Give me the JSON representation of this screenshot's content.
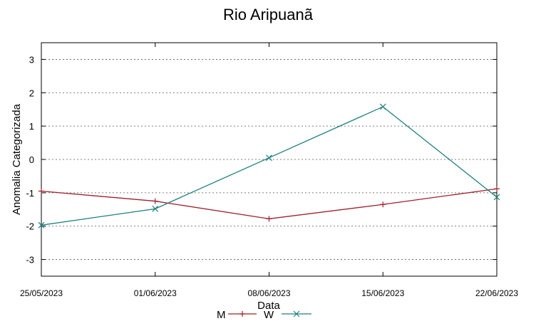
{
  "chart_data": {
    "type": "line",
    "title": "Rio Aripuanã",
    "xlabel": "Data",
    "ylabel": "Anomalia Categorizada",
    "categories": [
      "25/05/2023",
      "01/06/2023",
      "08/06/2023",
      "15/06/2023",
      "22/06/2023"
    ],
    "ylim": [
      -3.5,
      3.5
    ],
    "yticks": [
      -3,
      -2,
      -1,
      0,
      1,
      2,
      3
    ],
    "grid": true,
    "legend_position": "bottom-center",
    "series": [
      {
        "name": "M",
        "color": "#a0212b",
        "marker": "plus",
        "values": [
          -0.95,
          -1.25,
          -1.78,
          -1.35,
          -0.88
        ]
      },
      {
        "name": "W",
        "color": "#1d8080",
        "marker": "cross",
        "values": [
          -1.97,
          -1.48,
          0.05,
          1.58,
          -1.13
        ]
      }
    ]
  }
}
